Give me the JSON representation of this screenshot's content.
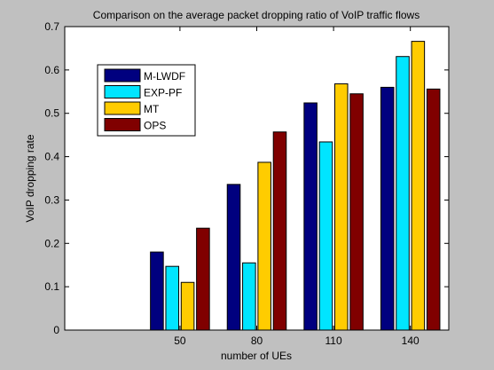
{
  "chart_data": {
    "type": "bar",
    "title": "Comparison on the average packet dropping ratio of VoIP traffic flows",
    "xlabel": "number of UEs",
    "ylabel": "VoIP dropping rate",
    "categories": [
      "50",
      "80",
      "110",
      "140"
    ],
    "ylim": [
      0,
      0.7
    ],
    "yticks": [
      "0",
      "0.1",
      "0.2",
      "0.3",
      "0.4",
      "0.5",
      "0.6",
      "0.7"
    ],
    "yticks_values": [
      0,
      0.1,
      0.2,
      0.3,
      0.4,
      0.5,
      0.6,
      0.7
    ],
    "grid": false,
    "legend_position": "top-left",
    "series": [
      {
        "name": "M-LWDF",
        "color": "#00007f",
        "values": [
          0.18,
          0.336,
          0.524,
          0.56
        ]
      },
      {
        "name": "EXP-PF",
        "color": "#00e5ff",
        "values": [
          0.147,
          0.155,
          0.434,
          0.631
        ]
      },
      {
        "name": "MT",
        "color": "#ffcc00",
        "values": [
          0.11,
          0.387,
          0.568,
          0.666
        ]
      },
      {
        "name": "OPS",
        "color": "#800000",
        "values": [
          0.235,
          0.457,
          0.545,
          0.556
        ]
      }
    ]
  }
}
